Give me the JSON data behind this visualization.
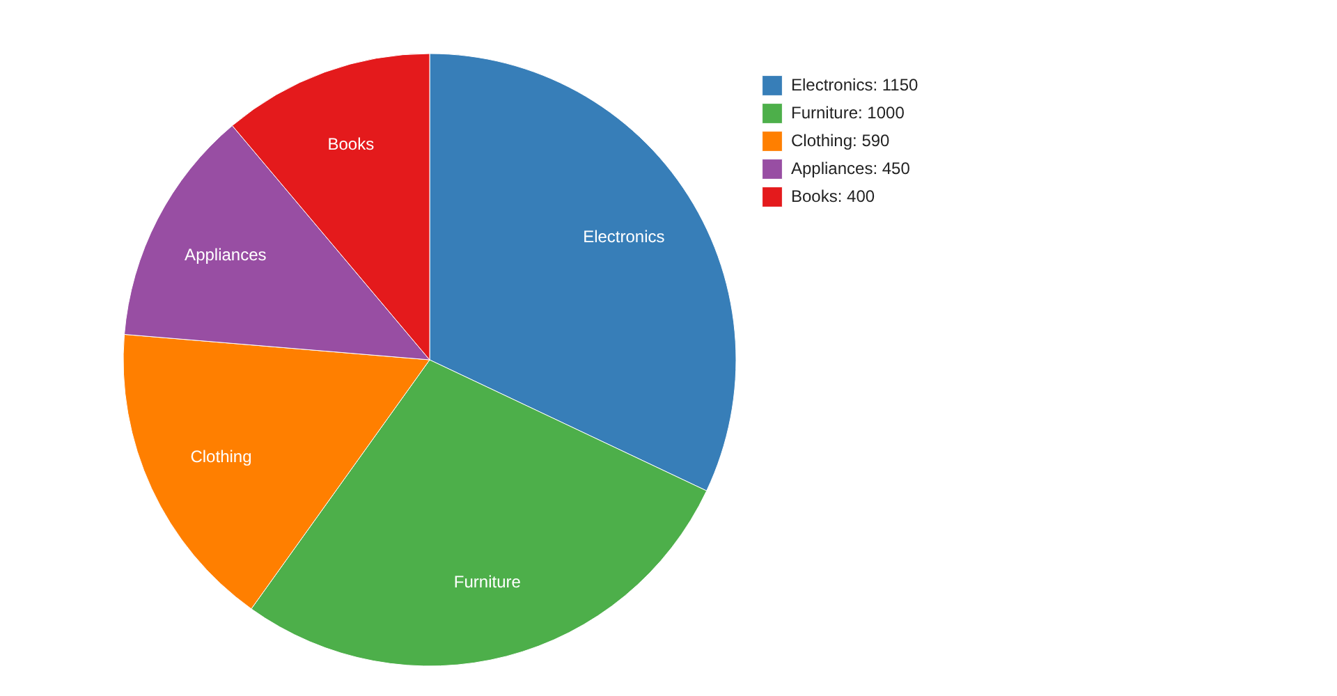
{
  "chart_data": {
    "type": "pie",
    "categories": [
      "Electronics: 1150",
      "Furniture: 1000",
      "Clothing: 590",
      "Appliances: 450",
      "Books: 400"
    ],
    "values": [
      1150,
      1000,
      590,
      450,
      400
    ],
    "value_labels": [
      "Electronics",
      "Furniture",
      "Clothing",
      "Appliances",
      "Books"
    ],
    "colors": [
      "#377eb8",
      "#4daf4a",
      "#ff7f00",
      "#984ea3",
      "#e41a1c"
    ],
    "legend": "top right"
  }
}
